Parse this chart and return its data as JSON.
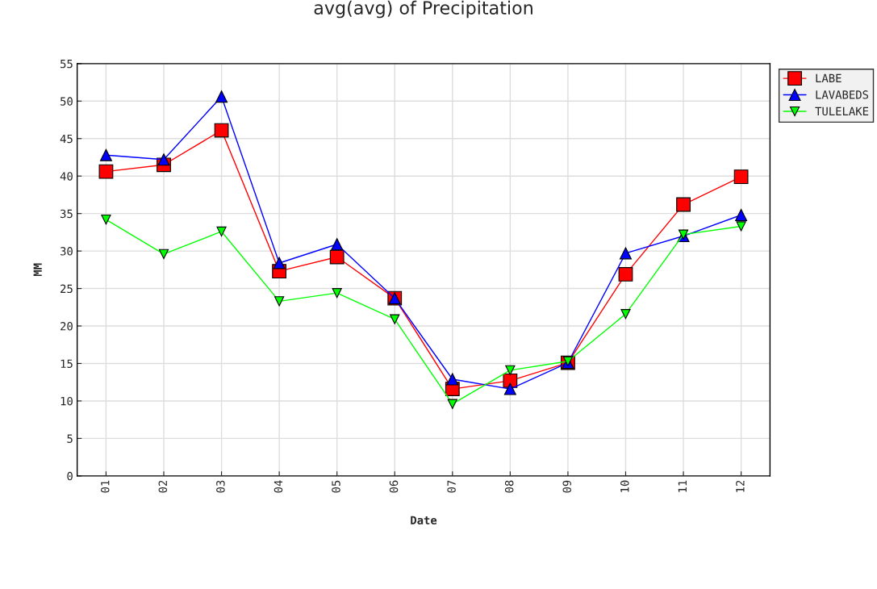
{
  "chart_data": {
    "type": "line",
    "title": "avg(avg) of Precipitation",
    "xlabel": "Date",
    "ylabel": "MM",
    "categories": [
      "01",
      "02",
      "03",
      "04",
      "05",
      "06",
      "07",
      "08",
      "09",
      "10",
      "11",
      "12"
    ],
    "series": [
      {
        "name": "LABE",
        "color": "#ff0000",
        "marker": "square",
        "values": [
          40.6,
          41.5,
          46.1,
          27.3,
          29.2,
          23.7,
          11.6,
          12.7,
          15.1,
          26.9,
          36.2,
          39.9
        ]
      },
      {
        "name": "LAVABEDS",
        "color": "#0000ff",
        "marker": "triangle",
        "values": [
          42.8,
          42.2,
          50.6,
          28.4,
          30.9,
          23.7,
          12.9,
          11.6,
          15.1,
          29.7,
          32.0,
          34.8
        ]
      },
      {
        "name": "TULELAKE",
        "color": "#00ff00",
        "marker": "triangle-down",
        "values": [
          34.2,
          29.6,
          32.6,
          23.3,
          24.4,
          20.9,
          9.6,
          14.1,
          15.3,
          21.6,
          32.2,
          33.3
        ]
      }
    ],
    "ylim": [
      0,
      55
    ],
    "yticks": [
      0,
      5,
      10,
      15,
      20,
      25,
      30,
      35,
      40,
      45,
      50,
      55
    ],
    "grid": true,
    "legend": "top right",
    "line_style": "solid"
  }
}
